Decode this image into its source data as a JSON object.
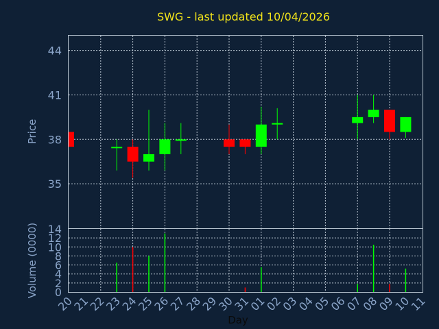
{
  "chart_data": {
    "type": "candlestick",
    "title": "SWG - last updated 10/04/2026",
    "xlabel": "Day",
    "price_ylabel": "Price",
    "volume_ylabel": "Volume (0000)",
    "x_ticks": [
      "20",
      "21",
      "22",
      "23",
      "24",
      "25",
      "26",
      "27",
      "28",
      "29",
      "30",
      "31",
      "01",
      "02",
      "03",
      "04",
      "05",
      "06",
      "07",
      "08",
      "09",
      "10",
      "11"
    ],
    "price_ticks": [
      35,
      38,
      41,
      44
    ],
    "price_ylim": [
      32,
      45
    ],
    "volume_ticks": [
      0,
      2,
      4,
      6,
      8,
      10,
      12,
      14
    ],
    "volume_ylim": [
      0,
      14
    ],
    "up_color": "#00ff00",
    "down_color": "#ff0000",
    "candles": [
      {
        "day": "20",
        "open": 38.5,
        "close": 37.5,
        "high": 38.5,
        "low": 37.5,
        "volume": 0
      },
      {
        "day": "23",
        "open": 37.4,
        "close": 37.5,
        "high": 38.0,
        "low": 35.9,
        "volume": 6.5
      },
      {
        "day": "24",
        "open": 37.5,
        "close": 36.5,
        "high": 38.0,
        "low": 35.4,
        "volume": 10.0
      },
      {
        "day": "25",
        "open": 36.5,
        "close": 37.0,
        "high": 40.0,
        "low": 35.9,
        "volume": 8.0
      },
      {
        "day": "26",
        "open": 37.0,
        "close": 38.0,
        "high": 39.1,
        "low": 35.9,
        "volume": 13.0
      },
      {
        "day": "27",
        "open": 37.9,
        "close": 38.0,
        "high": 39.1,
        "low": 37.0,
        "volume": 0
      },
      {
        "day": "30",
        "open": 38.0,
        "close": 37.5,
        "high": 39.0,
        "low": 37.0,
        "volume": 0
      },
      {
        "day": "31",
        "open": 38.0,
        "close": 37.5,
        "high": 38.0,
        "low": 37.0,
        "volume": 1.0
      },
      {
        "day": "01",
        "open": 37.5,
        "close": 39.0,
        "high": 40.2,
        "low": 37.0,
        "volume": 5.5
      },
      {
        "day": "02",
        "open": 39.0,
        "close": 39.1,
        "high": 40.1,
        "low": 38.0,
        "volume": 0
      },
      {
        "day": "07",
        "open": 39.1,
        "close": 39.5,
        "high": 41.0,
        "low": 38.0,
        "volume": 1.8
      },
      {
        "day": "08",
        "open": 39.5,
        "close": 40.0,
        "high": 41.0,
        "low": 39.1,
        "volume": 10.5
      },
      {
        "day": "09",
        "open": 40.0,
        "close": 38.5,
        "high": 40.0,
        "low": 38.0,
        "volume": 1.8
      },
      {
        "day": "10",
        "open": 38.5,
        "close": 39.5,
        "high": 39.5,
        "low": 38.1,
        "volume": 5.2
      }
    ]
  }
}
